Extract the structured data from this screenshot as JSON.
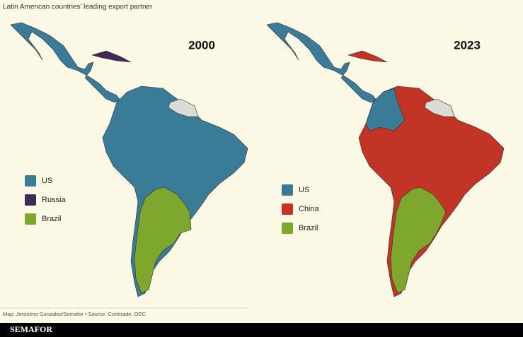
{
  "title": "Latin American countries’ leading export partner",
  "maps": [
    {
      "year": "2000",
      "legend": [
        {
          "label": "US",
          "color": "#3a7c98"
        },
        {
          "label": "Russia",
          "color": "#3f2a55"
        },
        {
          "label": "Brazil",
          "color": "#7ea72e"
        }
      ]
    },
    {
      "year": "2023",
      "legend": [
        {
          "label": "US",
          "color": "#3a7c98"
        },
        {
          "label": "China",
          "color": "#c23526"
        },
        {
          "label": "Brazil",
          "color": "#7ea72e"
        }
      ]
    }
  ],
  "source": "Map: Jeronimo Gonzalez/Semafor • Source: Comtrade, OEC",
  "brand": "SEMAFOR"
}
